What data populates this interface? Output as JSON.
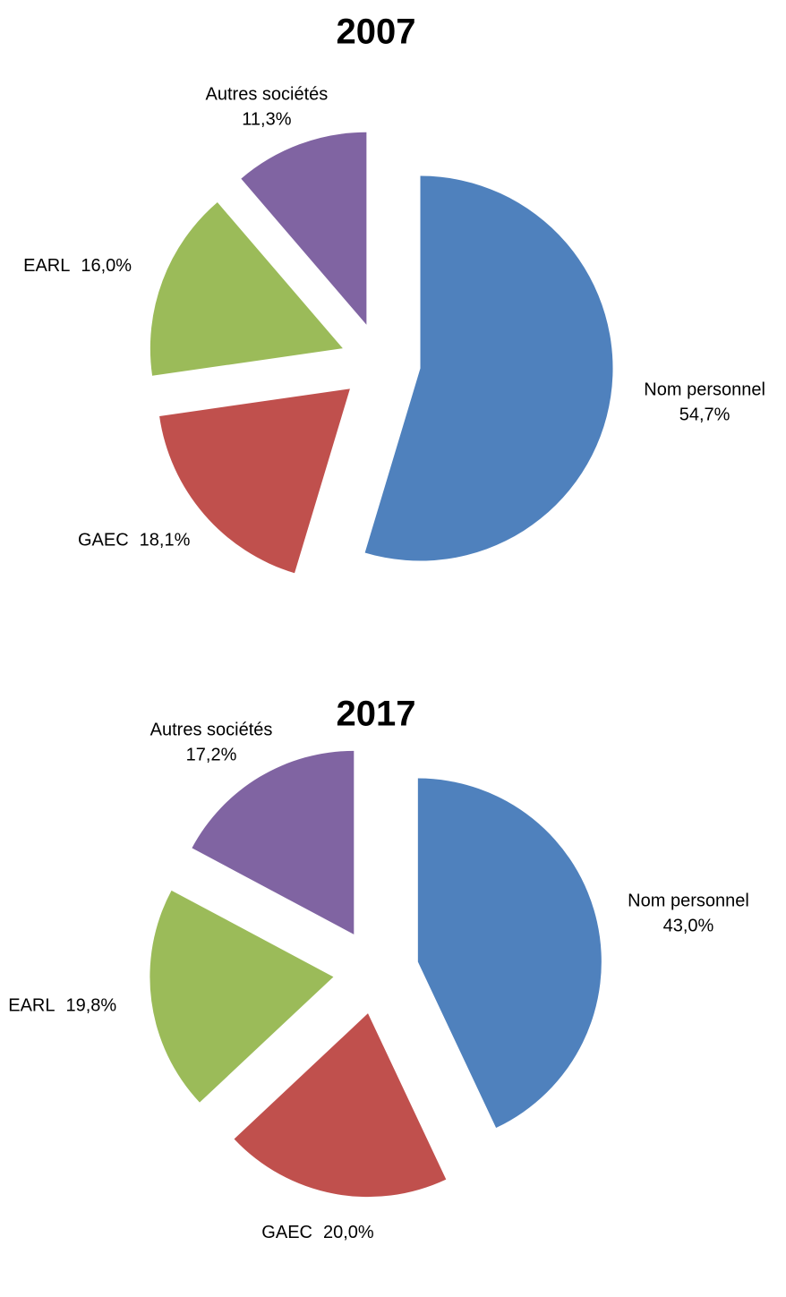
{
  "chart_data": [
    {
      "type": "pie",
      "title": "2007",
      "categories": [
        "Nom personnel",
        "GAEC",
        "EARL",
        "Autres sociétés"
      ],
      "values": [
        54.7,
        18.1,
        16.0,
        11.3
      ],
      "value_labels": [
        "54,7%",
        "18,1%",
        "16,0%",
        "11,3%"
      ],
      "colors": [
        "#4f81bd",
        "#c0504d",
        "#9bbb59",
        "#8064a2"
      ]
    },
    {
      "type": "pie",
      "title": "2017",
      "categories": [
        "Nom personnel",
        "GAEC",
        "EARL",
        "Autres sociétés"
      ],
      "values": [
        43.0,
        20.0,
        19.8,
        17.2
      ],
      "value_labels": [
        "43,0%",
        "20,0%",
        "19,8%",
        "17,2%"
      ],
      "colors": [
        "#4f81bd",
        "#c0504d",
        "#9bbb59",
        "#8064a2"
      ]
    }
  ]
}
